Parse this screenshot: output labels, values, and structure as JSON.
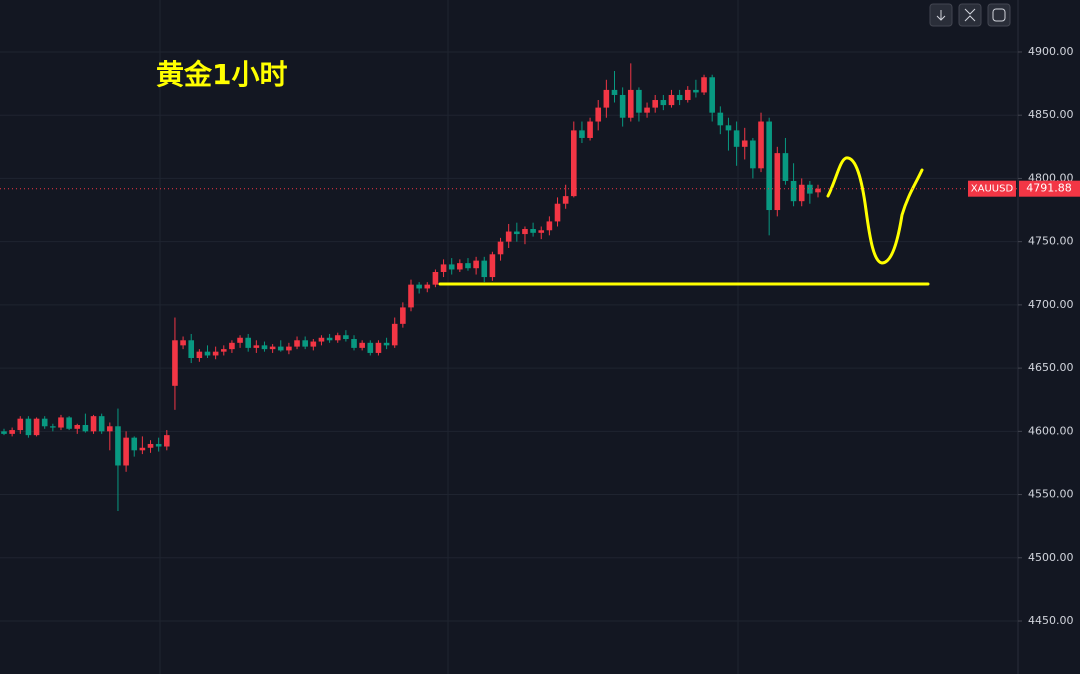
{
  "chart_data": {
    "type": "candlestick",
    "title": "黄金1小时",
    "symbol": "XAUUSD",
    "last_price": 4791.88,
    "up_color": "#f23645",
    "down_color": "#089981",
    "grid": true,
    "ylim": [
      4408.1,
      4941.1
    ],
    "yticks": [
      {
        "value": 4450,
        "label": "4450.00"
      },
      {
        "value": 4500,
        "label": "4500.00"
      },
      {
        "value": 4550,
        "label": "4550.00"
      },
      {
        "value": 4600,
        "label": "4600.00"
      },
      {
        "value": 4650,
        "label": "4650.00"
      },
      {
        "value": 4700,
        "label": "4700.00"
      },
      {
        "value": 4750,
        "label": "4750.00"
      },
      {
        "value": 4800,
        "label": "4800.00"
      },
      {
        "value": 4850,
        "label": "4850.00"
      },
      {
        "value": 4900,
        "label": "4900.00"
      }
    ],
    "open": [
      4600,
      4598,
      4601,
      4610,
      4597,
      4610,
      4604,
      4603,
      4611,
      4602,
      4605,
      4600,
      4612,
      4600,
      4604,
      4573,
      4595,
      4585,
      4587,
      4590,
      4588,
      4636,
      4668,
      4672,
      4658,
      4663,
      4660,
      4663,
      4665,
      4670,
      4674,
      4666,
      4668,
      4665,
      4667,
      4664,
      4667,
      4672,
      4667,
      4671,
      4674,
      4672,
      4676,
      4673,
      4666,
      4670,
      4662,
      4670,
      4668,
      4685,
      4698,
      4716,
      4713,
      4716,
      4726,
      4732,
      4728,
      4733,
      4729,
      4735,
      4722,
      4740,
      4750,
      4758,
      4756,
      4760,
      4757,
      4759,
      4766,
      4780,
      4786,
      4838,
      4832,
      4845,
      4856,
      4870,
      4866,
      4848,
      4870,
      4852,
      4856,
      4862,
      4858,
      4866,
      4862,
      4870,
      4868,
      4880,
      4852,
      4842,
      4838,
      4825,
      4830,
      4808,
      4845,
      4775,
      4820,
      4798,
      4782,
      4795,
      4789
    ],
    "high": [
      4602,
      4603,
      4612,
      4612,
      4611,
      4612,
      4606,
      4613,
      4612,
      4606,
      4614,
      4613,
      4614,
      4607,
      4618,
      4600,
      4596,
      4596,
      4593,
      4595,
      4601,
      4690,
      4675,
      4677,
      4665,
      4668,
      4667,
      4668,
      4672,
      4676,
      4677,
      4672,
      4671,
      4669,
      4672,
      4670,
      4675,
      4675,
      4673,
      4676,
      4677,
      4678,
      4680,
      4676,
      4672,
      4672,
      4672,
      4674,
      4690,
      4702,
      4720,
      4718,
      4718,
      4728,
      4736,
      4737,
      4736,
      4737,
      4738,
      4738,
      4742,
      4753,
      4764,
      4765,
      4762,
      4765,
      4762,
      4770,
      4785,
      4795,
      4845,
      4845,
      4848,
      4862,
      4878,
      4885,
      4872,
      4891,
      4872,
      4860,
      4866,
      4866,
      4870,
      4870,
      4873,
      4878,
      4882,
      4882,
      4857,
      4848,
      4845,
      4840,
      4832,
      4852,
      4848,
      4825,
      4832,
      4812,
      4800,
      4798,
      4795
    ],
    "low": [
      4597,
      4596,
      4598,
      4595,
      4596,
      4602,
      4600,
      4601,
      4601,
      4598,
      4599,
      4598,
      4598,
      4585,
      4537,
      4568,
      4580,
      4582,
      4583,
      4584,
      4585,
      4617,
      4665,
      4654,
      4655,
      4658,
      4657,
      4660,
      4662,
      4666,
      4663,
      4662,
      4663,
      4662,
      4663,
      4661,
      4665,
      4665,
      4664,
      4668,
      4670,
      4670,
      4671,
      4664,
      4664,
      4660,
      4660,
      4665,
      4666,
      4682,
      4695,
      4709,
      4710,
      4714,
      4722,
      4724,
      4726,
      4727,
      4724,
      4718,
      4719,
      4735,
      4745,
      4750,
      4748,
      4754,
      4752,
      4755,
      4762,
      4776,
      4785,
      4828,
      4830,
      4838,
      4848,
      4860,
      4841,
      4845,
      4845,
      4848,
      4852,
      4854,
      4856,
      4858,
      4860,
      4864,
      4866,
      4845,
      4835,
      4822,
      4810,
      4815,
      4800,
      4805,
      4755,
      4770,
      4795,
      4778,
      4778,
      4780,
      4785
    ],
    "close": [
      4598,
      4601,
      4610,
      4597,
      4610,
      4604,
      4603,
      4611,
      4602,
      4605,
      4600,
      4612,
      4600,
      4604,
      4573,
      4595,
      4585,
      4587,
      4590,
      4588,
      4597,
      4672,
      4672,
      4658,
      4663,
      4660,
      4663,
      4665,
      4670,
      4674,
      4666,
      4668,
      4665,
      4667,
      4664,
      4667,
      4672,
      4667,
      4671,
      4674,
      4672,
      4676,
      4673,
      4666,
      4670,
      4662,
      4670,
      4668,
      4685,
      4698,
      4716,
      4713,
      4716,
      4726,
      4732,
      4728,
      4733,
      4729,
      4735,
      4722,
      4740,
      4750,
      4758,
      4756,
      4760,
      4757,
      4759,
      4766,
      4780,
      4786,
      4838,
      4832,
      4845,
      4856,
      4870,
      4866,
      4848,
      4870,
      4852,
      4856,
      4862,
      4858,
      4866,
      4862,
      4870,
      4868,
      4880,
      4852,
      4842,
      4838,
      4825,
      4830,
      4808,
      4845,
      4775,
      4820,
      4798,
      4782,
      4795,
      4788,
      4791.88
    ]
  }
}
